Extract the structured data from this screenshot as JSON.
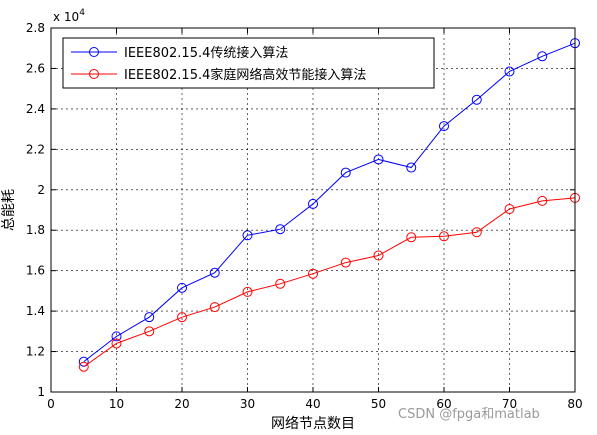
{
  "chart_data": {
    "type": "line",
    "title": "",
    "xlabel": "网络节点数目",
    "ylabel": "总能耗",
    "y_multiplier_label": "x 10",
    "y_multiplier_exp": "4",
    "xlim": [
      0,
      80
    ],
    "ylim": [
      1.0,
      2.8
    ],
    "x_ticks": [
      0,
      10,
      20,
      30,
      40,
      50,
      60,
      70,
      80
    ],
    "y_ticks": [
      1,
      1.2,
      1.4,
      1.6,
      1.8,
      2,
      2.2,
      2.4,
      2.6,
      2.8
    ],
    "grid": true,
    "legend_position": "top-left",
    "x": [
      5,
      10,
      15,
      20,
      25,
      30,
      35,
      40,
      45,
      50,
      55,
      60,
      65,
      70,
      75,
      80
    ],
    "series": [
      {
        "name": "IEEE802.15.4传统接入算法",
        "color": "#0000ff",
        "values": [
          1.15,
          1.275,
          1.37,
          1.515,
          1.59,
          1.775,
          1.805,
          1.93,
          2.085,
          2.15,
          2.11,
          2.315,
          2.445,
          2.585,
          2.66,
          2.725
        ]
      },
      {
        "name": "IEEE802.15.4家庭网络高效节能接入算法",
        "color": "#ff0000",
        "values": [
          1.125,
          1.24,
          1.3,
          1.37,
          1.42,
          1.495,
          1.535,
          1.585,
          1.64,
          1.675,
          1.765,
          1.77,
          1.79,
          1.905,
          1.945,
          1.96
        ]
      }
    ]
  },
  "watermark": "CSDN @fpga和matlab"
}
